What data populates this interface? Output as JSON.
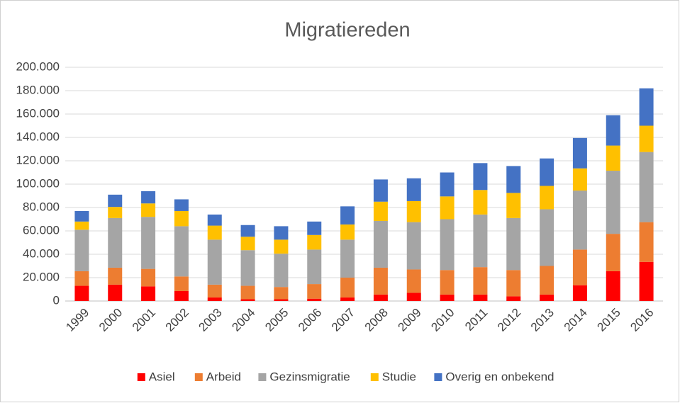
{
  "chart_data": {
    "type": "stacked_bar",
    "title": "Migratiereden",
    "categories": [
      "1999",
      "2000",
      "2001",
      "2002",
      "2003",
      "2004",
      "2005",
      "2006",
      "2007",
      "2008",
      "2009",
      "2010",
      "2011",
      "2012",
      "2013",
      "2014",
      "2015",
      "2016"
    ],
    "series": [
      {
        "name": "Asiel",
        "color": "#ff0000",
        "values": [
          13000,
          14000,
          12500,
          8500,
          3000,
          1500,
          1500,
          2000,
          3000,
          5500,
          7000,
          5500,
          5500,
          4000,
          5500,
          13500,
          25500,
          33500
        ]
      },
      {
        "name": "Arbeid",
        "color": "#ed7d31",
        "values": [
          12500,
          14500,
          15000,
          12500,
          11000,
          11500,
          10500,
          12500,
          17000,
          23000,
          20000,
          21000,
          23500,
          22500,
          24500,
          30500,
          32000,
          34000
        ]
      },
      {
        "name": "Gezinsmigratie",
        "color": "#a5a5a5",
        "values": [
          35500,
          42500,
          44500,
          43000,
          38500,
          30500,
          28500,
          29500,
          32500,
          40000,
          40500,
          43500,
          45000,
          44500,
          48500,
          50500,
          54000,
          60000
        ]
      },
      {
        "name": "Studie",
        "color": "#ffc000",
        "values": [
          7000,
          9500,
          11500,
          13000,
          12000,
          11500,
          12000,
          12500,
          13000,
          16500,
          18000,
          19500,
          21000,
          21500,
          20000,
          19000,
          21500,
          22500
        ]
      },
      {
        "name": "Overig en onbekend",
        "color": "#4472c4",
        "values": [
          9000,
          10500,
          10500,
          10000,
          9500,
          10000,
          11500,
          11500,
          15500,
          19000,
          19500,
          20500,
          23000,
          23000,
          23500,
          26000,
          26000,
          32000
        ]
      }
    ],
    "ylim": [
      0,
      200000
    ],
    "yticks": [
      0,
      {
        "value": 20000,
        "label": "20.000"
      },
      {
        "value": 40000,
        "label": "40.000"
      },
      {
        "value": 60000,
        "label": "60.000"
      },
      {
        "value": 80000,
        "label": "80.000"
      },
      {
        "value": 100000,
        "label": "100.000"
      },
      {
        "value": 120000,
        "label": "120.000"
      },
      {
        "value": 140000,
        "label": "140.000"
      },
      {
        "value": 160000,
        "label": "160.000"
      },
      {
        "value": 180000,
        "label": "180.000"
      },
      {
        "value": 200000,
        "label": "200.000"
      }
    ],
    "grid": true,
    "legend": "bottom"
  }
}
